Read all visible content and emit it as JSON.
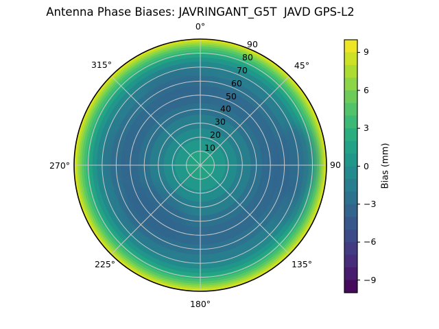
{
  "figure": {
    "background": "#ffffff"
  },
  "chart_data": {
    "type": "heatmap",
    "projection": "polar",
    "title": "Antenna Phase Biases: JAVRINGANT_G5T  JAVD GPS-L2",
    "colormap": "viridis",
    "vmin": -10,
    "vmax": 10,
    "level_step_mm": 1,
    "grid": true,
    "theta_tick_labels": [
      "0°",
      "45°",
      "90",
      "135°",
      "180°",
      "225°",
      "270°",
      "315°"
    ],
    "theta_tick_values_deg": [
      0,
      45,
      90,
      135,
      180,
      225,
      270,
      315
    ],
    "r_tick_labels": [
      "10",
      "20",
      "30",
      "40",
      "50",
      "60",
      "70",
      "80",
      "90"
    ],
    "r_tick_values": [
      10,
      20,
      30,
      40,
      50,
      60,
      70,
      80,
      90
    ],
    "r_axis_range": [
      0,
      90
    ],
    "r_label_angle_deg": 22.5,
    "colorbar": {
      "label": "Bias (mm)",
      "position": "right",
      "tick_labels": [
        "9",
        "6",
        "3",
        "0",
        "−3",
        "−6",
        "−9"
      ],
      "tick_values": [
        9,
        6,
        3,
        0,
        -3,
        -6,
        -9
      ],
      "band_colors_top_to_bottom": [
        "#ede525",
        "#cde126",
        "#acdc31",
        "#8bd546",
        "#6dcc59",
        "#52c368",
        "#3cb975",
        "#2bae7f",
        "#22a286",
        "#21978a",
        "#238b8d",
        "#277e8e",
        "#2c728e",
        "#31658d",
        "#37578c",
        "#3d4a89",
        "#423b83",
        "#462c7a",
        "#471b6d",
        "#450a5c"
      ]
    },
    "radial_profile_estimate": {
      "zenith_angle_deg": [
        0,
        10,
        20,
        30,
        40,
        50,
        60,
        70,
        80,
        85,
        90
      ],
      "bias_mm": [
        1.5,
        1.0,
        0.0,
        -1.0,
        -2.0,
        -2.5,
        -2.5,
        -1.5,
        0.5,
        3.0,
        9.5
      ]
    },
    "azimuthal_anomalies": [
      {
        "azimuth_deg": 90,
        "zenith_deg": 60,
        "bias_mm": -3.5
      },
      {
        "azimuth_deg": 215,
        "zenith_deg": 55,
        "bias_mm": -3.0
      },
      {
        "azimuth_deg": 350,
        "zenith_deg": 45,
        "bias_mm": -2.5
      }
    ],
    "grid_color": "#c9c9c9",
    "outline_color": "#000000"
  }
}
